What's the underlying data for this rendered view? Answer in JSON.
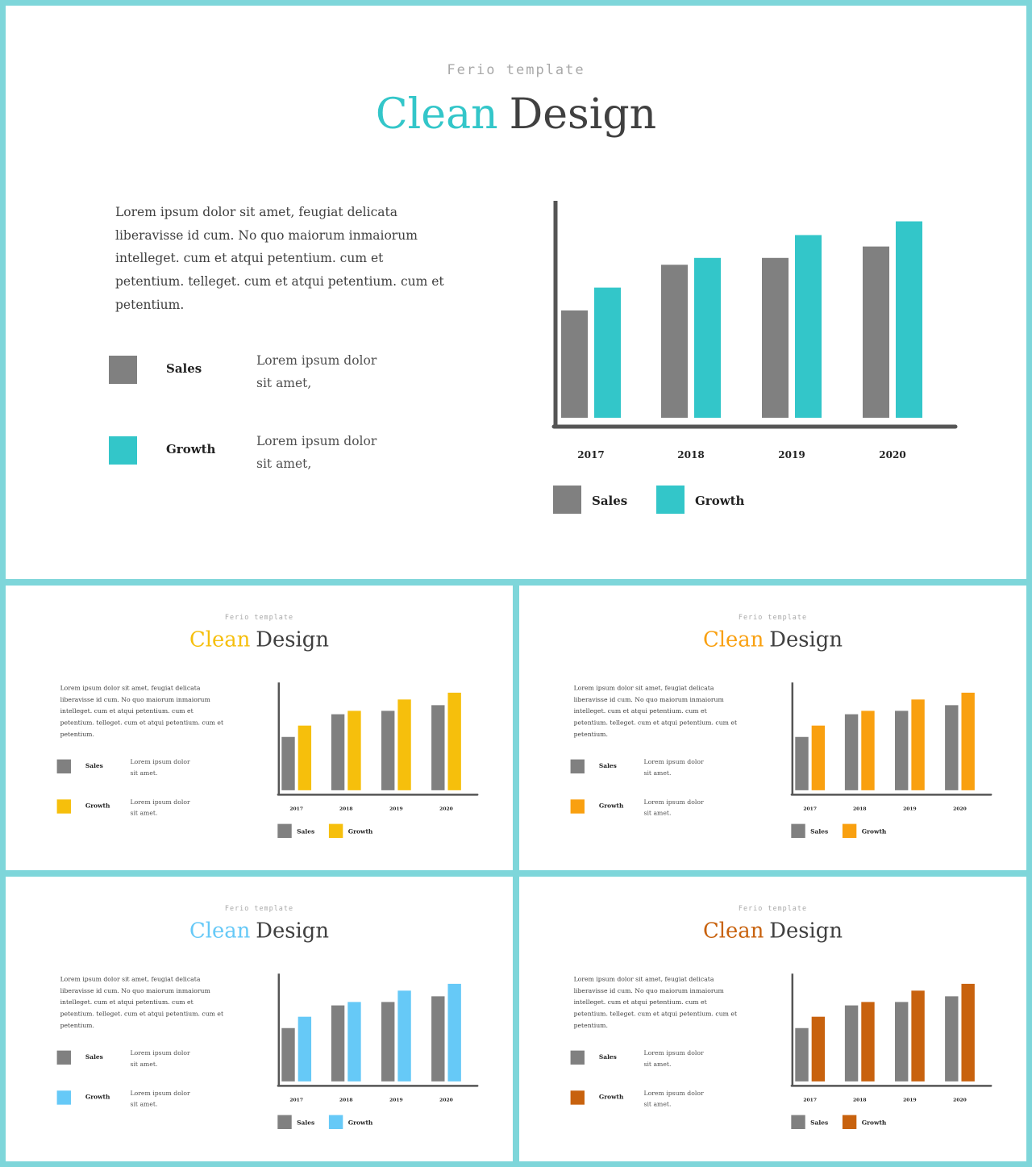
{
  "slides": [
    {
      "subtitle": "Ferio template",
      "title_accent": "Clean",
      "title_rest": "Design",
      "accent_color": "#33c6c9",
      "paragraph": "Lorem ipsum dolor sit amet, feugiat delicata liberavisse  id cum. No quo maiorum inmaiorum intelleget.  cum et atqui petentium.  cum et petentium. telleget.  cum et atqui petentium.  cum et petentium.",
      "legend": [
        {
          "name": "Sales",
          "color": "#808080",
          "desc_line1": "Lorem ipsum dolor",
          "desc_line2": "sit amet,"
        },
        {
          "name": "Growth",
          "color": "#33c6c9",
          "desc_line1": "Lorem ipsum dolor",
          "desc_line2": "sit amet,"
        }
      ],
      "bottom_legend": [
        {
          "label": "Sales"
        },
        {
          "label": "Growth"
        }
      ]
    },
    {
      "subtitle": "Ferio template",
      "title_accent": "Clean",
      "title_rest": "Design",
      "accent_color": "#f6bf0c",
      "paragraph": "Lorem ipsum dolor sit amet, feugiat delicata liberavisse  id cum. No quo maiorum inmaiorum intelleget.  cum et atqui petentium.  cum et petentium. telleget.  cum et atqui petentium.  cum et petentium.",
      "legend": [
        {
          "name": "Sales",
          "color": "#808080",
          "desc_line1": "Lorem ipsum dolor",
          "desc_line2": "sit amet."
        },
        {
          "name": "Growth",
          "color": "#f6bf0c",
          "desc_line1": "Lorem ipsum dolor",
          "desc_line2": "sit amet."
        }
      ],
      "bottom_legend": [
        {
          "label": "Sales"
        },
        {
          "label": "Growth"
        }
      ]
    },
    {
      "subtitle": "Ferio template",
      "title_accent": "Clean",
      "title_rest": "Design",
      "accent_color": "#f9a010",
      "paragraph": "Lorem ipsum dolor sit amet, feugiat delicata liberavisse  id cum. No quo maiorum inmaiorum intelleget.  cum et atqui petentium.  cum et petentium. telleget.  cum et atqui petentium.  cum et petentium.",
      "legend": [
        {
          "name": "Sales",
          "color": "#808080",
          "desc_line1": "Lorem ipsum dolor",
          "desc_line2": "sit amet."
        },
        {
          "name": "Growth",
          "color": "#f9a010",
          "desc_line1": "Lorem ipsum dolor",
          "desc_line2": "sit amet."
        }
      ],
      "bottom_legend": [
        {
          "label": "Sales"
        },
        {
          "label": "Growth"
        }
      ]
    },
    {
      "subtitle": "Ferio template",
      "title_accent": "Clean",
      "title_rest": "Design",
      "accent_color": "#66c9f7",
      "paragraph": "Lorem ipsum dolor sit amet, feugiat delicata liberavisse  id cum. No quo maiorum inmaiorum intelleget.  cum et atqui petentium.  cum et petentium. telleget.  cum et atqui petentium.  cum et petentium.",
      "legend": [
        {
          "name": "Sales",
          "color": "#808080",
          "desc_line1": "Lorem ipsum dolor",
          "desc_line2": "sit amet."
        },
        {
          "name": "Growth",
          "color": "#66c9f7",
          "desc_line1": "Lorem ipsum dolor",
          "desc_line2": "sit amet."
        }
      ],
      "bottom_legend": [
        {
          "label": "Sales"
        },
        {
          "label": "Growth"
        }
      ]
    },
    {
      "subtitle": "Ferio template",
      "title_accent": "Clean",
      "title_rest": "Design",
      "accent_color": "#c8620e",
      "paragraph": "Lorem ipsum dolor sit amet, feugiat delicata liberavisse  id cum. No quo maiorum inmaiorum intelleget.  cum et atqui petentium.  cum et petentium. telleget.  cum et atqui petentium.  cum et petentium.",
      "legend": [
        {
          "name": "Sales",
          "color": "#808080",
          "desc_line1": "Lorem ipsum dolor",
          "desc_line2": "sit amet."
        },
        {
          "name": "Growth",
          "color": "#c8620e",
          "desc_line1": "Lorem ipsum dolor",
          "desc_line2": "sit amet."
        }
      ],
      "bottom_legend": [
        {
          "label": "Sales"
        },
        {
          "label": "Growth"
        }
      ]
    }
  ],
  "chart_data": [
    {
      "type": "bar",
      "categories": [
        "2017",
        "2018",
        "2019",
        "2020"
      ],
      "series": [
        {
          "name": "Sales",
          "values": [
            47,
            67,
            70,
            75
          ],
          "color": "#808080"
        },
        {
          "name": "Growth",
          "values": [
            57,
            70,
            80,
            86
          ],
          "color": "#33c6c9"
        }
      ],
      "ylim": [
        0,
        95
      ],
      "grid": false,
      "legend": "bottom"
    },
    {
      "type": "bar",
      "categories": [
        "2017",
        "2018",
        "2019",
        "2020"
      ],
      "series": [
        {
          "name": "Sales",
          "values": [
            47,
            67,
            70,
            75
          ],
          "color": "#808080"
        },
        {
          "name": "Growth",
          "values": [
            57,
            70,
            80,
            86
          ],
          "color": "#f6bf0c"
        }
      ],
      "ylim": [
        0,
        95
      ],
      "grid": false,
      "legend": "bottom"
    },
    {
      "type": "bar",
      "categories": [
        "2017",
        "2018",
        "2019",
        "2020"
      ],
      "series": [
        {
          "name": "Sales",
          "values": [
            47,
            67,
            70,
            75
          ],
          "color": "#808080"
        },
        {
          "name": "Growth",
          "values": [
            57,
            70,
            80,
            86
          ],
          "color": "#f9a010"
        }
      ],
      "ylim": [
        0,
        95
      ],
      "grid": false,
      "legend": "bottom"
    },
    {
      "type": "bar",
      "categories": [
        "2017",
        "2018",
        "2019",
        "2020"
      ],
      "series": [
        {
          "name": "Sales",
          "values": [
            47,
            67,
            70,
            75
          ],
          "color": "#808080"
        },
        {
          "name": "Growth",
          "values": [
            57,
            70,
            80,
            86
          ],
          "color": "#66c9f7"
        }
      ],
      "ylim": [
        0,
        95
      ],
      "grid": false,
      "legend": "bottom"
    },
    {
      "type": "bar",
      "categories": [
        "2017",
        "2018",
        "2019",
        "2020"
      ],
      "series": [
        {
          "name": "Sales",
          "values": [
            47,
            67,
            70,
            75
          ],
          "color": "#808080"
        },
        {
          "name": "Growth",
          "values": [
            57,
            70,
            80,
            86
          ],
          "color": "#c8620e"
        }
      ],
      "ylim": [
        0,
        95
      ],
      "grid": false,
      "legend": "bottom"
    }
  ]
}
